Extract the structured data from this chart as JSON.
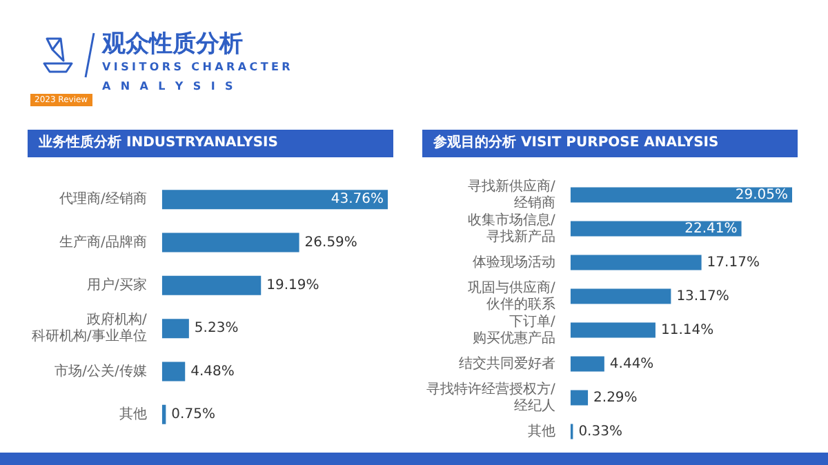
{
  "chart_data": [
    {
      "type": "bar",
      "orientation": "horizontal",
      "title": "业务性质分析 INDUSTRYANALYSIS",
      "annotations": [
        "观众性质分析",
        "VISITORS CHARACTER",
        "A N A L Y S I S",
        "2023 Review"
      ],
      "categories": [
        "代理商/经销商",
        "生产商/品牌商",
        "用户/买家",
        "政府机构/科研机构/事业单位",
        "市场/公关/传媒",
        "其他"
      ],
      "values": [
        43.76,
        26.59,
        19.19,
        5.23,
        4.48,
        0.75
      ],
      "value_labels": [
        "43.76%",
        "26.59%",
        "19.19%",
        "5.23%",
        "4.48%",
        "0.75%"
      ],
      "color": "#2e7dba",
      "legend": false
    },
    {
      "type": "bar",
      "orientation": "horizontal",
      "title": "参观目的分析 VISIT PURPOSE ANALYSIS",
      "categories": [
        "寻找新供应商/经销商",
        "收集市场信息/寻找新产品",
        "体验现场活动",
        "巩固与供应商/伙伴的联系",
        "下订单/购买优惠产品",
        "结交共同爱好者",
        "寻找特许经营授权方/经纪人",
        "其他"
      ],
      "values": [
        29.05,
        22.41,
        17.17,
        13.17,
        11.14,
        4.44,
        2.29,
        0.33
      ],
      "value_labels": [
        "29.05%",
        "22.41%",
        "17.17%",
        "13.17%",
        "11.14%",
        "4.44%",
        "2.29%",
        "0.33%"
      ],
      "color": "#2e7dba",
      "legend": false
    }
  ]
}
